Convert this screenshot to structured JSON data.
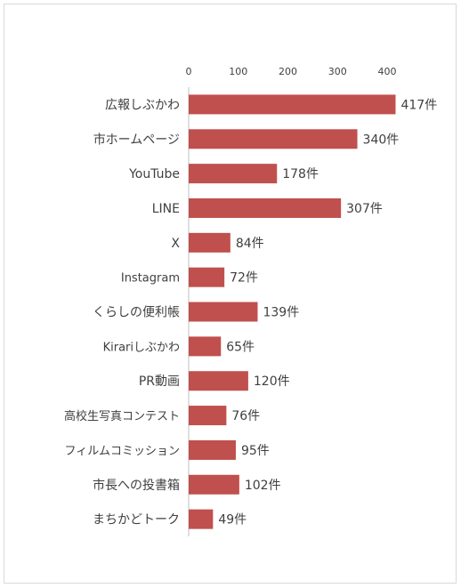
{
  "chart_data": {
    "type": "bar",
    "orientation": "horizontal",
    "categories": [
      "広報しぶかわ",
      "市ホームページ",
      "YouTube",
      "LINE",
      "X",
      "Instagram",
      "くらしの便利帳",
      "Kirariしぶかわ",
      "PR動画",
      "高校生写真コンテスト",
      "フィルムコミッション",
      "市長への投書箱",
      "まちかどトーク"
    ],
    "values": [
      417,
      340,
      178,
      307,
      84,
      72,
      139,
      65,
      120,
      76,
      95,
      102,
      49
    ],
    "data_labels": [
      "417件",
      "340件",
      "178件",
      "307件",
      "84件",
      "72件",
      "139件",
      "65件",
      "120件",
      "76件",
      "95件",
      "102件",
      "49件"
    ],
    "x_ticks": [
      "0",
      "100",
      "200",
      "300",
      "400"
    ],
    "xlim": [
      0,
      450
    ],
    "xaxis_position": "top",
    "grid": false,
    "bar_color": "#c0504d"
  }
}
